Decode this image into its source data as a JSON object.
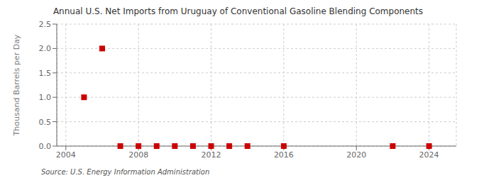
{
  "chart_data": {
    "type": "scatter",
    "title": "Annual U.S. Net Imports from Uruguay of Conventional Gasoline Blending Components",
    "ylabel": "Thousand Barrels per Day",
    "annotations": [
      "Source: U.S. Energy Information Administration"
    ],
    "x": [
      2005,
      2006,
      2007,
      2008,
      2009,
      2010,
      2011,
      2012,
      2013,
      2014,
      2016,
      2022,
      2024
    ],
    "values": [
      1.0,
      2.0,
      0.0,
      0.0,
      0.0,
      0.0,
      0.0,
      0.0,
      0.0,
      0.0,
      0.0,
      0.0,
      0.0
    ],
    "color": "#cc0000",
    "marker": "square",
    "xlim": [
      2003.5,
      2025.5
    ],
    "ylim": [
      0.0,
      2.5
    ],
    "xticks": [
      2004,
      2008,
      2012,
      2016,
      2020,
      2024
    ],
    "yticks": [
      {
        "value": 0,
        "label": "0.0"
      },
      0.5,
      {
        "value": 1,
        "label": "1.0"
      },
      1.5,
      {
        "value": 2,
        "label": "2.0"
      },
      2.5
    ],
    "grid": true
  }
}
